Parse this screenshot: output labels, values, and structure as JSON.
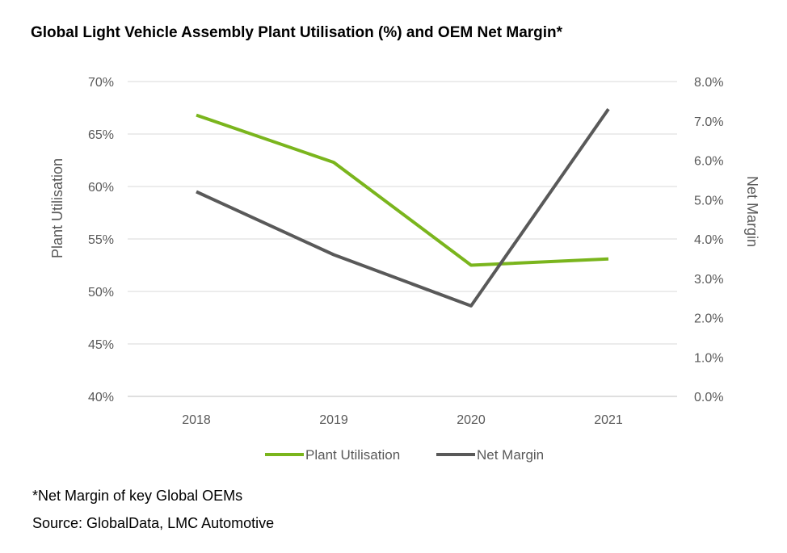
{
  "chart_data": {
    "type": "line",
    "title": "Global Light Vehicle Assembly Plant Utilisation (%) and OEM Net Margin*",
    "categories": [
      "2018",
      "2019",
      "2020",
      "2021"
    ],
    "series": [
      {
        "name": "Plant Utilisation",
        "axis": "left",
        "values": [
          66.8,
          62.3,
          52.5,
          53.1
        ],
        "color": "#7ab51d"
      },
      {
        "name": "Net Margin",
        "axis": "right",
        "values": [
          5.2,
          3.6,
          2.3,
          7.3
        ],
        "color": "#595959"
      }
    ],
    "ylabel": "Plant Utilisation",
    "y2label": "Net Margin",
    "ylim": [
      40,
      70
    ],
    "y2lim": [
      0,
      8
    ],
    "yticks": [
      "40%",
      "45%",
      "50%",
      "55%",
      "60%",
      "65%",
      "70%"
    ],
    "y2ticks": [
      "0.0%",
      "1.0%",
      "2.0%",
      "3.0%",
      "4.0%",
      "5.0%",
      "6.0%",
      "7.0%",
      "8.0%"
    ],
    "grid": true,
    "legend_position": "bottom"
  },
  "footnotes": {
    "note": "*Net Margin of key Global OEMs",
    "source": "Source: GlobalData, LMC Automotive"
  }
}
